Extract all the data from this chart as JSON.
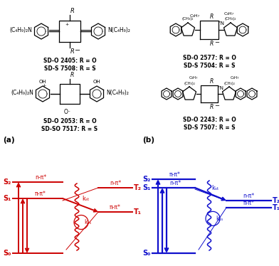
{
  "red_color": "#CC0000",
  "blue_color": "#1010CC",
  "black_color": "#000000",
  "bg_color": "#FFFFFF",
  "fig_width": 3.92,
  "fig_height": 3.74,
  "dpi": 100,
  "mol1_labels": [
    "SD-O 2405: R = O",
    "SD-S 7508: R = S"
  ],
  "mol2_labels": [
    "SD-O 2577: R = O",
    "SD-S 7504: R = S"
  ],
  "mol3_labels": [
    "SD-O 2053: R = O",
    "SD-SO 7517: R = S"
  ],
  "mol4_labels": [
    "SD-O 2243: R = O",
    "SD-S 7507: R = S"
  ],
  "panel_a_label": "(a)",
  "panel_b_label": "(b)",
  "panel_a_color": "#CC0000",
  "panel_b_color": "#1010CC"
}
